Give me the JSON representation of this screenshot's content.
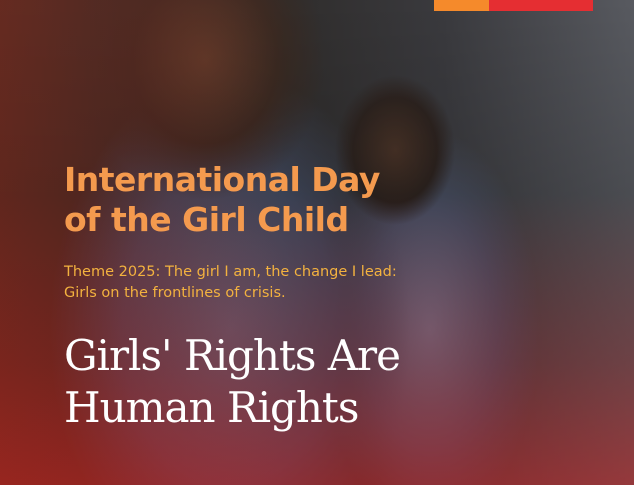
{
  "poster": {
    "title_line1": "International Day",
    "title_line2": "of the Girl Child",
    "theme": "Theme 2025: The girl I am, the change I lead: Girls on the frontlines of crisis.",
    "slogan_line1": "Girls' Rights Are",
    "slogan_line2": "Human Rights",
    "colors": {
      "title": "#f49a4e",
      "theme": "#f3b23f",
      "slogan": "#ffffff",
      "logo_orange": "#f58a2b",
      "logo_red": "#e52e32"
    }
  }
}
